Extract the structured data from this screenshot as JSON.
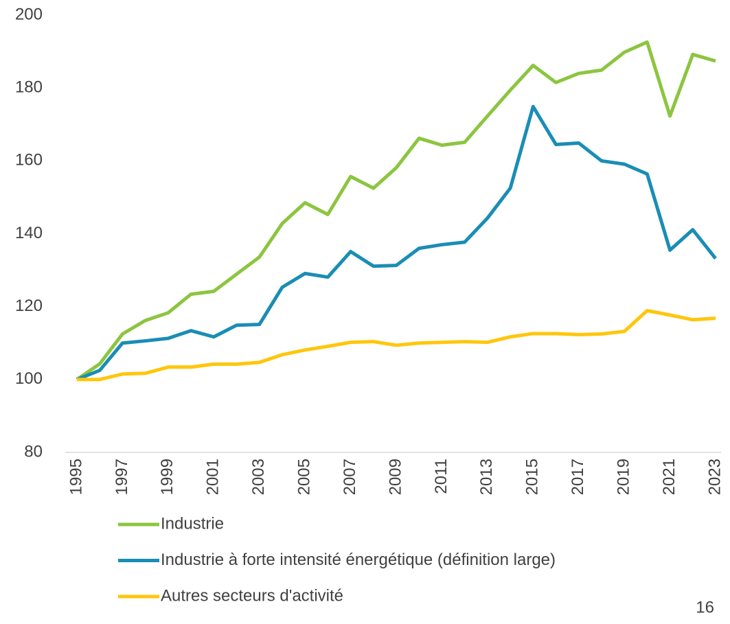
{
  "chart_data": {
    "type": "line",
    "categories": [
      "1995",
      null,
      "1997",
      null,
      "1999",
      null,
      "2001",
      null,
      "2003",
      null,
      "2005",
      null,
      "2007",
      null,
      "2009",
      null,
      "2011",
      null,
      "2013",
      null,
      "2015",
      null,
      "2017",
      null,
      "2019",
      null,
      "2021",
      null,
      "2023"
    ],
    "series": [
      {
        "name": "Industrie",
        "color": "#8cc540",
        "values": [
          100,
          104.3,
          112.5,
          116.2,
          118.3,
          123.4,
          124.2,
          128.9,
          133.6,
          142.8,
          148.5,
          145.3,
          155.7,
          152.5,
          158.1,
          166.2,
          164.3,
          165.1,
          172.3,
          179.4,
          186.2,
          181.5,
          184,
          184.9,
          189.8,
          192.6,
          172.3,
          189.2,
          187.4
        ]
      },
      {
        "name": "Industrie à forte intensité énergétique (définition large)",
        "color": "#1a8db5",
        "values": [
          100,
          102.5,
          110,
          110.6,
          111.3,
          113.4,
          111.7,
          114.9,
          115.1,
          125.3,
          129.1,
          128.1,
          135.1,
          131.1,
          131.3,
          136,
          137,
          137.7,
          144.3,
          152.5,
          174.9,
          164.5,
          164.9,
          160,
          159.1,
          156.4,
          135.5,
          141.1,
          133.2
        ]
      },
      {
        "name": "Autres secteurs d'activité",
        "color": "#ffc60b",
        "values": [
          100,
          100,
          101.5,
          101.7,
          103.4,
          103.4,
          104.2,
          104.2,
          104.7,
          106.8,
          108.1,
          109.1,
          110.2,
          110.4,
          109.4,
          110,
          110.2,
          110.4,
          110.2,
          111.7,
          112.6,
          112.6,
          112.3,
          112.5,
          113.2,
          118.9,
          117.7,
          116.4,
          116.8
        ]
      }
    ],
    "ylim": [
      80,
      200
    ],
    "yticks": [
      80,
      100,
      120,
      140,
      160,
      180,
      200
    ],
    "grid": false,
    "legend": "bottom"
  },
  "page_number": "16"
}
